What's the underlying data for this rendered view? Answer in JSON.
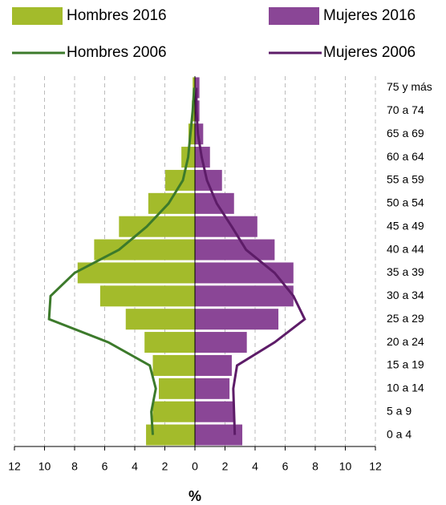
{
  "chart_data": {
    "type": "pyramid",
    "categories": [
      "0 a 4",
      "5 a 9",
      "10 a 14",
      "15 a 19",
      "20 a 24",
      "25 a 29",
      "30 a 34",
      "35 a 39",
      "40 a 44",
      "45 a 49",
      "50 a 54",
      "55 a 59",
      "60 a 64",
      "65 a 69",
      "70 a 74",
      "75 y más"
    ],
    "series": [
      {
        "name": "Hombres 2016",
        "type": "bar",
        "color": "#a3bb2b",
        "values": [
          -3.25,
          -2.8,
          -2.4,
          -2.8,
          -3.35,
          -4.6,
          -6.3,
          -7.8,
          -6.7,
          -5.05,
          -3.1,
          -1.97,
          -0.9,
          -0.43,
          -0.2,
          -0.15
        ]
      },
      {
        "name": "Mujeres 2016",
        "type": "bar",
        "color": "#8a4696",
        "values": [
          3.15,
          2.6,
          2.3,
          2.45,
          3.45,
          5.55,
          6.55,
          6.55,
          5.3,
          4.15,
          2.6,
          1.8,
          1.0,
          0.55,
          0.3,
          0.3
        ]
      },
      {
        "name": "Hombres 2006",
        "type": "line",
        "color": "#3c7a2b",
        "values": [
          -2.8,
          -2.9,
          -2.6,
          -3.0,
          -5.75,
          -9.7,
          -9.6,
          -8.0,
          -5.05,
          -3.2,
          -1.75,
          -0.8,
          -0.45,
          -0.3,
          -0.15,
          -0.05
        ]
      },
      {
        "name": "Mujeres 2006",
        "type": "line",
        "color": "#5d1c68",
        "values": [
          2.65,
          2.6,
          2.55,
          2.8,
          5.3,
          7.3,
          6.55,
          5.3,
          3.4,
          2.45,
          1.45,
          0.8,
          0.45,
          0.2,
          0.1,
          0.1
        ]
      }
    ],
    "xlabel": "%",
    "xlim": [
      -12,
      12
    ],
    "xticks": [
      {
        "value": -12,
        "label": "12"
      },
      {
        "value": -10,
        "label": "10"
      },
      {
        "value": -8,
        "label": "8"
      },
      {
        "value": -6,
        "label": "6"
      },
      {
        "value": -4,
        "label": "4"
      },
      {
        "value": -2,
        "label": "2"
      },
      0,
      2,
      4,
      6,
      8,
      10,
      12
    ],
    "grid": true
  }
}
